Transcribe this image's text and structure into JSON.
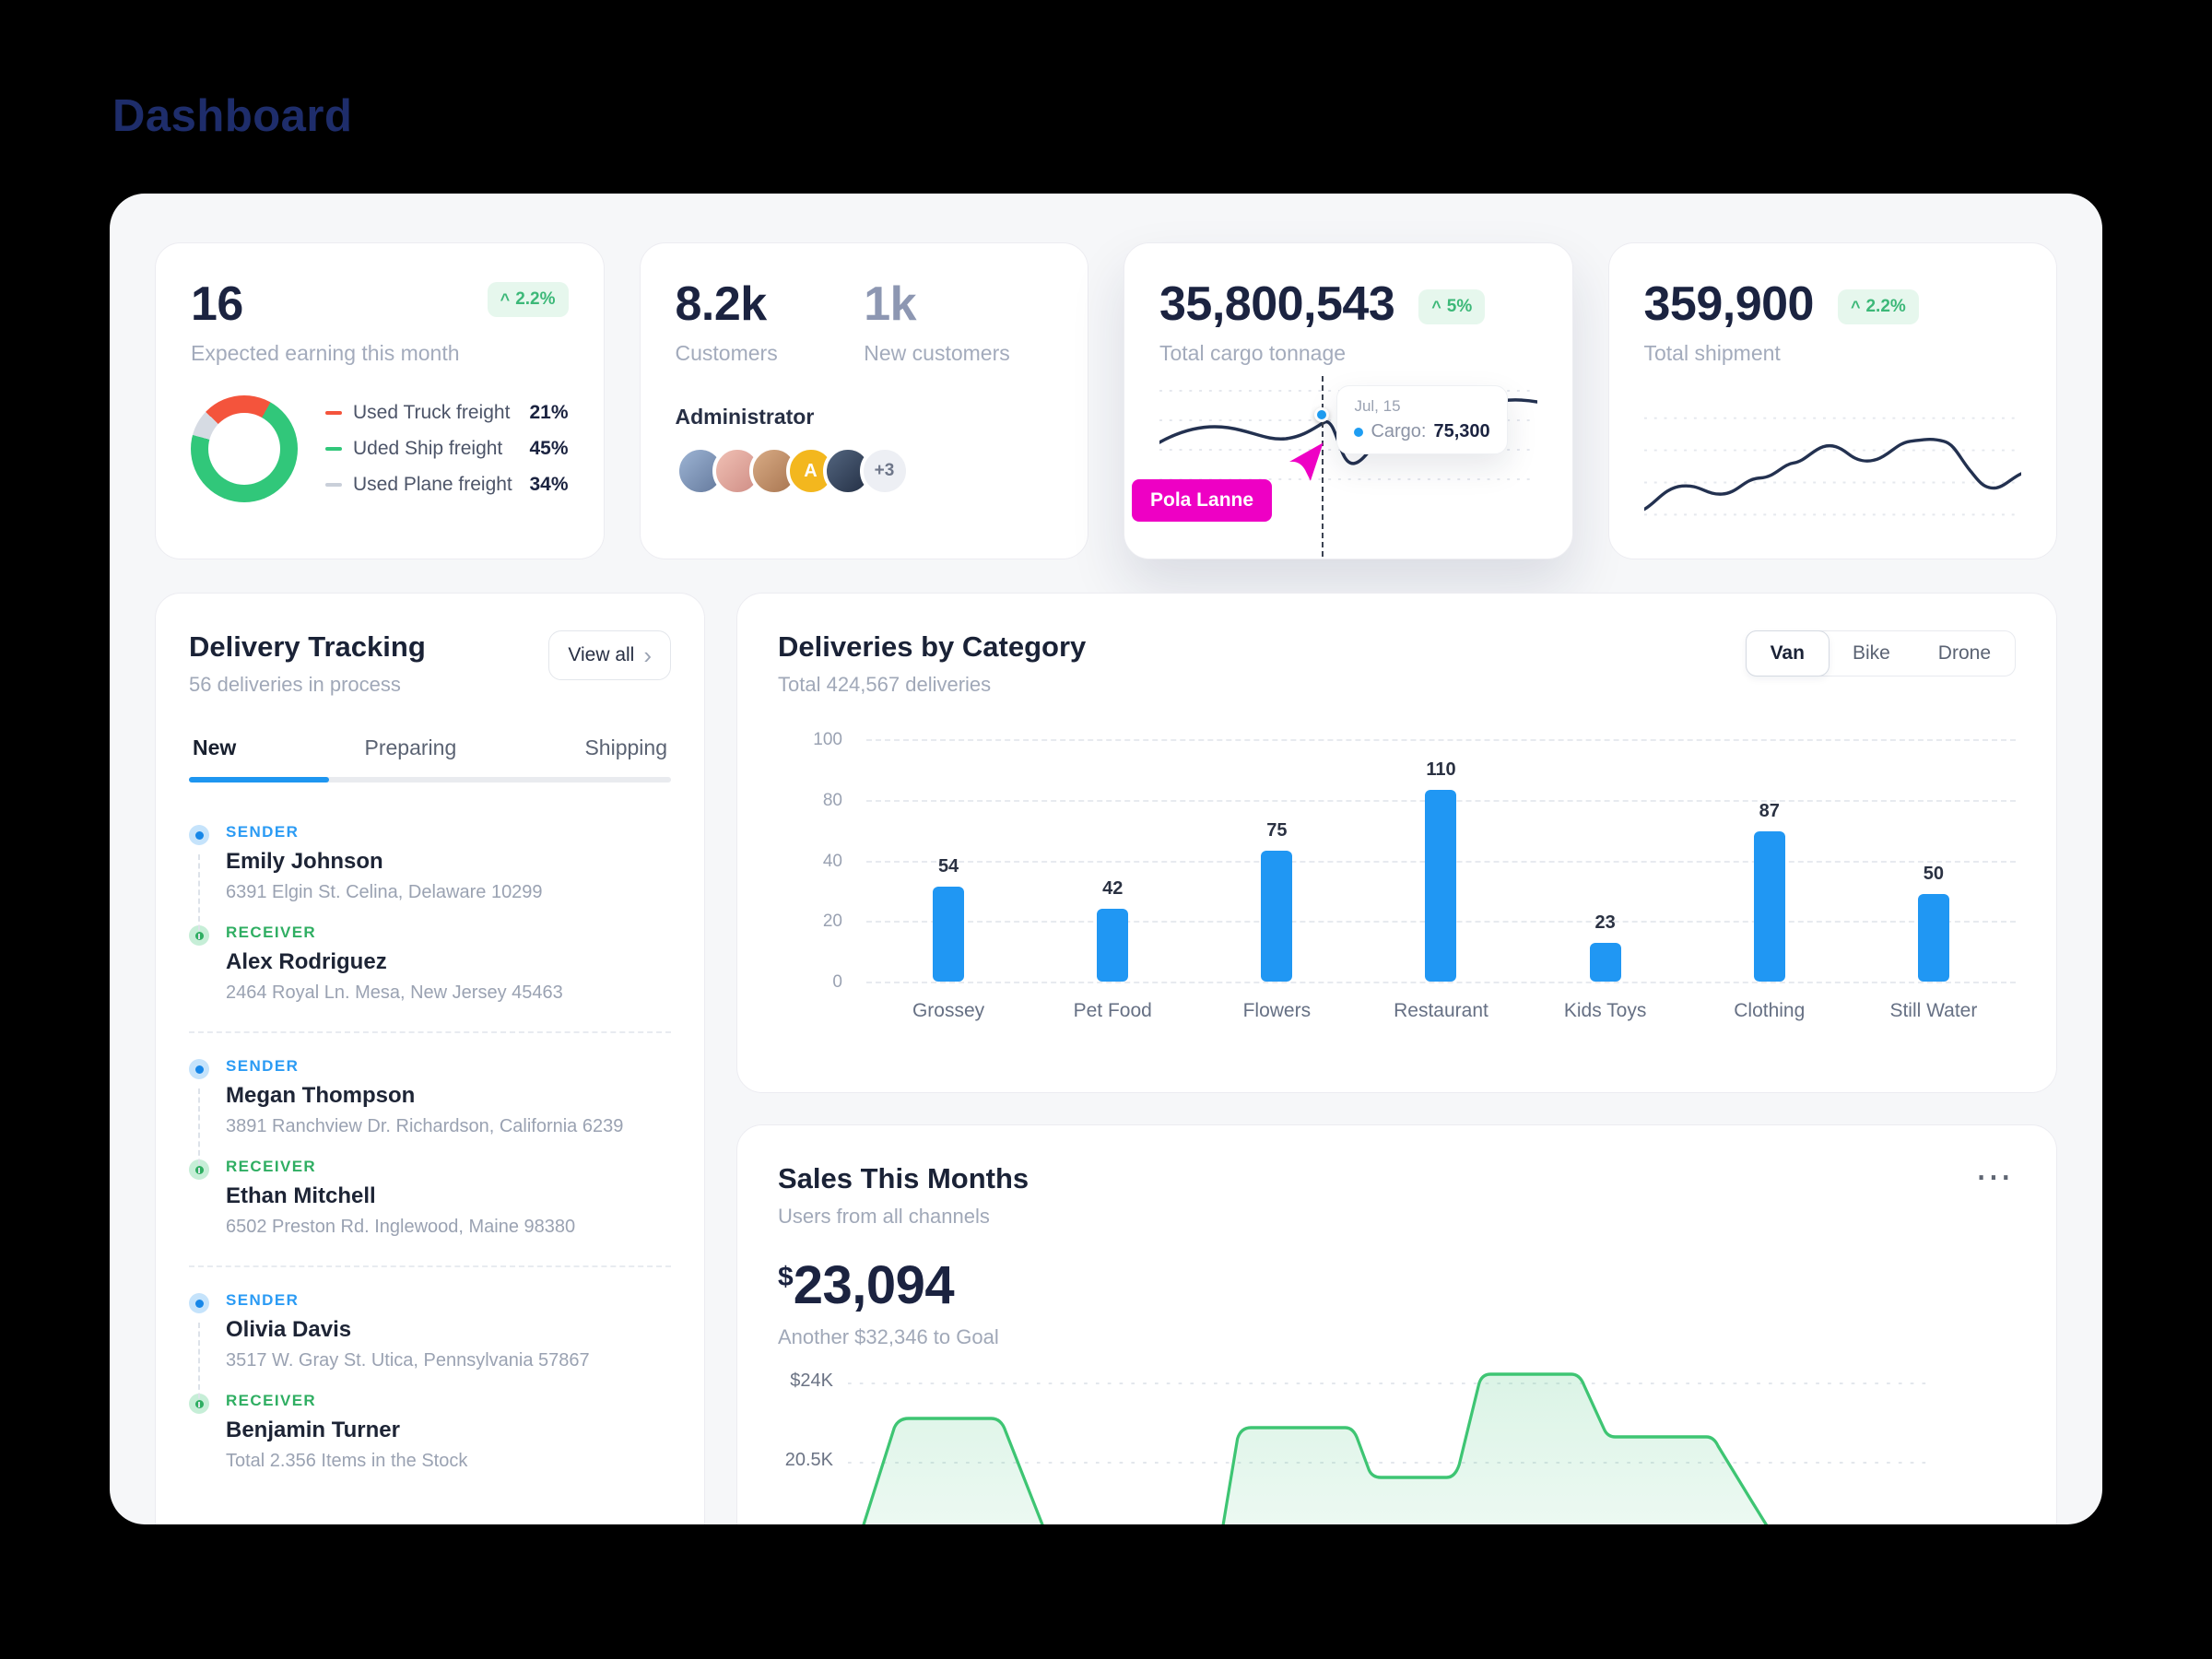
{
  "page": {
    "title": "Dashboard"
  },
  "icons": {
    "trend_up": "^",
    "chevron_right": "›",
    "ellipsis": "⋯"
  },
  "cards": {
    "earnings": {
      "value": "16",
      "badge": "2.2%",
      "label": "Expected earning this month",
      "legend": [
        {
          "label": "Used Truck freight",
          "value": "21%",
          "color": "#f4543c"
        },
        {
          "label": "Uded Ship freight",
          "value": "45%",
          "color": "#31c77a"
        },
        {
          "label": "Used Plane freight",
          "value": "34%",
          "color": "#c9cfd9"
        }
      ]
    },
    "customers": {
      "value": "8.2k",
      "label": "Customers",
      "new_value": "1k",
      "new_label": "New customers",
      "admin_label": "Administrator",
      "avatar_letter": "A",
      "avatar_more": "+3"
    },
    "cargo": {
      "value": "35,800,543",
      "badge": "5%",
      "label": "Total cargo tonnage",
      "tooltip": {
        "date": "Jul, 15",
        "metric": "Cargo:",
        "amount": "75,300"
      },
      "cursor_label": "Pola Lanne"
    },
    "shipment": {
      "value": "359,900",
      "badge": "2.2%",
      "label": "Total shipment"
    }
  },
  "delivery_tracking": {
    "title": "Delivery Tracking",
    "subtitle": "56 deliveries in process",
    "view_all": "View all",
    "tabs": [
      "New",
      "Preparing",
      "Shipping"
    ],
    "active_tab": "New",
    "shipments": [
      {
        "sender": {
          "label": "SENDER",
          "name": "Emily Johnson",
          "address": "6391 Elgin St. Celina, Delaware 10299"
        },
        "receiver": {
          "label": "RECEIVER",
          "name": "Alex Rodriguez",
          "address": "2464 Royal Ln. Mesa, New Jersey 45463"
        }
      },
      {
        "sender": {
          "label": "SENDER",
          "name": "Megan Thompson",
          "address": "3891 Ranchview Dr. Richardson, California 6239"
        },
        "receiver": {
          "label": "RECEIVER",
          "name": "Ethan Mitchell",
          "address": "6502 Preston Rd. Inglewood, Maine 98380"
        }
      },
      {
        "sender": {
          "label": "SENDER",
          "name": "Olivia Davis",
          "address": "3517 W. Gray St. Utica, Pennsylvania 57867"
        },
        "receiver": {
          "label": "RECEIVER",
          "name": "Benjamin Turner",
          "address": "Total 2.356 Items in the Stock"
        }
      }
    ]
  },
  "deliveries_by_category": {
    "title": "Deliveries by Category",
    "subtitle": "Total 424,567 deliveries",
    "modes": [
      "Van",
      "Bike",
      "Drone"
    ],
    "active_mode": "Van",
    "chart_data": {
      "type": "bar",
      "categories": [
        "Grossey",
        "Pet Food",
        "Flowers",
        "Restaurant",
        "Kids Toys",
        "Clothing",
        "Still Water"
      ],
      "values": [
        54,
        42,
        75,
        110,
        23,
        87,
        50
      ],
      "y_ticks": [
        "100",
        "80",
        "40",
        "20",
        "0"
      ],
      "ylim": [
        0,
        100
      ],
      "bar_color": "#2097f3",
      "grid": "dashed-horizontal"
    }
  },
  "sales": {
    "title": "Sales This Months",
    "subtitle": "Users from all channels",
    "currency": "$",
    "value": "23,094",
    "goal": "Another $32,346 to Goal",
    "chart_data": {
      "type": "area",
      "y_ticks": [
        "$24K",
        "20.5K"
      ],
      "line_color": "#3ec573",
      "grid": "dashed-horizontal"
    }
  }
}
